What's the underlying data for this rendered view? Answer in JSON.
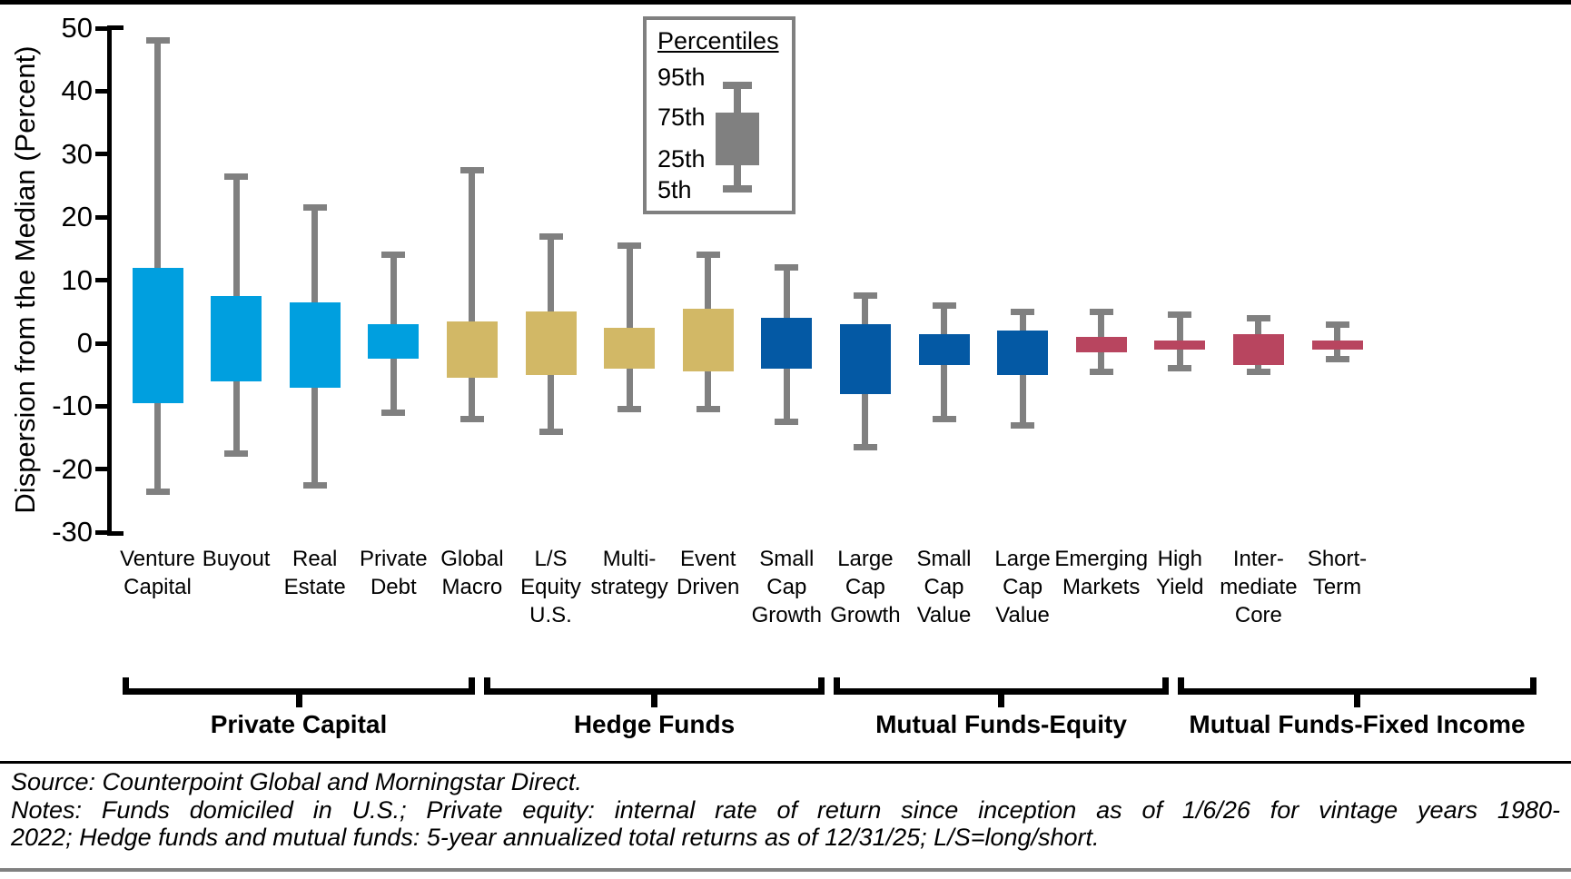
{
  "page": {
    "source": "Source: Counterpoint Global and Morningstar Direct.",
    "notes_line1": "Notes: Funds domiciled in U.S.; Private equity: internal rate of return since inception as of 1/6/26 for vintage years 1980-",
    "notes_line2": "2022; Hedge funds and mutual funds: 5-year annualized total returns as of 12/31/25; L/S=long/short."
  },
  "chart_data": {
    "type": "box",
    "title": "",
    "ylabel": "Dispersion from the Median (Percent)",
    "ylim": [
      -30,
      50
    ],
    "yticks": [
      50,
      40,
      30,
      20,
      10,
      0,
      -10,
      -20,
      -30
    ],
    "grid": false,
    "legend": {
      "title": "Percentiles",
      "labels": [
        "95th",
        "75th",
        "25th",
        "5th"
      ],
      "position": "top-center",
      "glyph_color": "#808080"
    },
    "whisker_color": "#808080",
    "groups": [
      {
        "label": "Private Capital",
        "color": "#009FDF",
        "items": [
          {
            "label_lines": [
              "Venture",
              "Capital"
            ],
            "p95": 48,
            "p75": 12,
            "p25": -9.5,
            "p5": -23.5
          },
          {
            "label_lines": [
              "Buyout"
            ],
            "p95": 26.5,
            "p75": 7.5,
            "p25": -6,
            "p5": -17.5
          },
          {
            "label_lines": [
              "Real",
              "Estate"
            ],
            "p95": 21.5,
            "p75": 6.5,
            "p25": -7,
            "p5": -22.5
          },
          {
            "label_lines": [
              "Private",
              "Debt"
            ],
            "p95": 14,
            "p75": 3,
            "p25": -2.5,
            "p5": -11
          }
        ]
      },
      {
        "label": "Hedge Funds",
        "color": "#D2B866",
        "items": [
          {
            "label_lines": [
              "Global",
              "Macro"
            ],
            "p95": 27.5,
            "p75": 3.5,
            "p25": -5.5,
            "p5": -12
          },
          {
            "label_lines": [
              "L/S",
              "Equity",
              "U.S."
            ],
            "p95": 17,
            "p75": 5,
            "p25": -5,
            "p5": -14
          },
          {
            "label_lines": [
              "Multi-",
              "strategy"
            ],
            "p95": 15.5,
            "p75": 2.5,
            "p25": -4,
            "p5": -10.5
          },
          {
            "label_lines": [
              "Event",
              "Driven"
            ],
            "p95": 14,
            "p75": 5.5,
            "p25": -4.5,
            "p5": -10.5
          }
        ]
      },
      {
        "label": "Mutual Funds-Equity",
        "color": "#0459A4",
        "items": [
          {
            "label_lines": [
              "Small",
              "Cap",
              "Growth"
            ],
            "p95": 12,
            "p75": 4,
            "p25": -4,
            "p5": -12.5
          },
          {
            "label_lines": [
              "Large",
              "Cap",
              "Growth"
            ],
            "p95": 7.5,
            "p75": 3,
            "p25": -8,
            "p5": -16.5
          },
          {
            "label_lines": [
              "Small",
              "Cap",
              "Value"
            ],
            "p95": 6,
            "p75": 1.5,
            "p25": -3.5,
            "p5": -12
          },
          {
            "label_lines": [
              "Large",
              "Cap",
              "Value"
            ],
            "p95": 5,
            "p75": 2,
            "p25": -5,
            "p5": -13
          }
        ]
      },
      {
        "label": "Mutual Funds-Fixed Income",
        "color": "#B8455F",
        "items": [
          {
            "label_lines": [
              "Emerging",
              "Markets"
            ],
            "p95": 5,
            "p75": 1,
            "p25": -1.5,
            "p5": -4.5
          },
          {
            "label_lines": [
              "High",
              "Yield"
            ],
            "p95": 4.5,
            "p75": 0.5,
            "p25": -1,
            "p5": -4
          },
          {
            "label_lines": [
              "Inter-",
              "mediate",
              "Core"
            ],
            "p95": 4,
            "p75": 1.5,
            "p25": -3.5,
            "p5": -4.5
          },
          {
            "label_lines": [
              "Short-",
              "Term"
            ],
            "p95": 3,
            "p75": 0.5,
            "p25": -1,
            "p5": -2.5
          }
        ]
      }
    ]
  }
}
